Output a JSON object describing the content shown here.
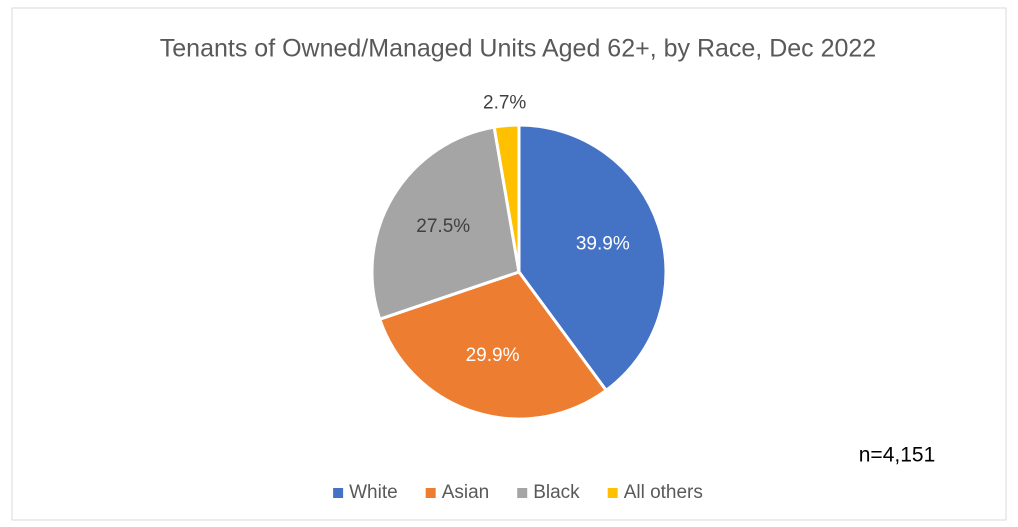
{
  "chart_data": {
    "type": "pie",
    "title": "Tenants of Owned/Managed Units Aged 62+, by Race, Dec 2022",
    "categories": [
      "White",
      "Asian",
      "Black",
      "All others"
    ],
    "values": [
      39.9,
      29.9,
      27.5,
      2.7
    ],
    "value_labels": [
      "39.9%",
      "29.9%",
      "27.5%",
      "2.7%"
    ],
    "colors": [
      "#4472c4",
      "#ed7d31",
      "#a5a5a5",
      "#ffc000"
    ],
    "annotation": "n=4,151",
    "legend": "bottom"
  }
}
